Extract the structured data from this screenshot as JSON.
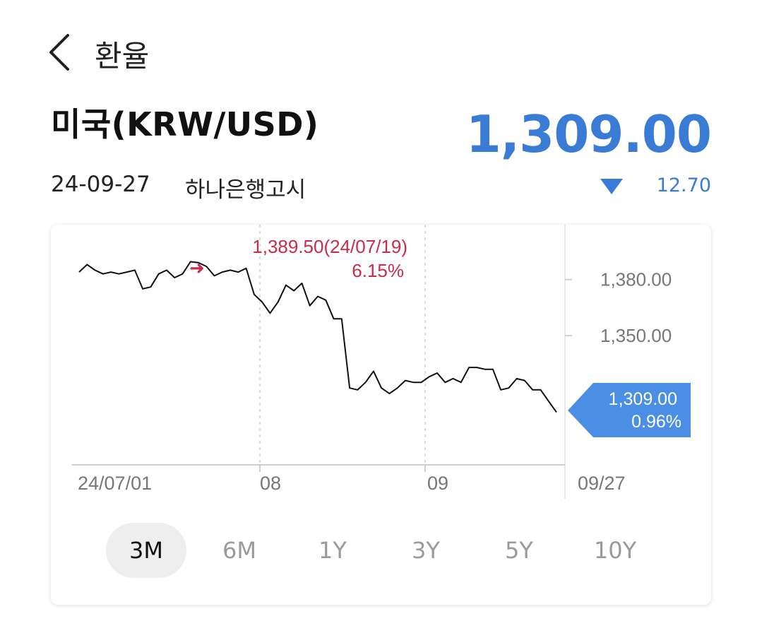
{
  "header": {
    "title": "환율"
  },
  "currency": {
    "name": "미국(KRW/USD)",
    "price": "1,309.00",
    "date": "24-09-27",
    "source": "하나은행고시",
    "change": "12.70",
    "change_direction": "down"
  },
  "colors": {
    "accent_blue": "#3a7bd5",
    "tag_blue": "#4a8ee6",
    "high_red": "#cc2a4a"
  },
  "chart_data": {
    "type": "line",
    "x_labels": [
      "24/07/01",
      "08",
      "09",
      "09/27"
    ],
    "y_ticks": [
      "1,380.00",
      "1,350.00"
    ],
    "y_tick_values": [
      1380,
      1350
    ],
    "ylim": [
      1296,
      1398
    ],
    "series": [
      {
        "values": [
          1384,
          1388,
          1385,
          1383,
          1384,
          1383,
          1384,
          1385,
          1375,
          1376,
          1383,
          1385,
          1381,
          1383,
          1389.5,
          1389,
          1387,
          1382,
          1384,
          1385,
          1384,
          1386,
          1372,
          1368,
          1362,
          1368,
          1377,
          1374,
          1378,
          1366,
          1371,
          1369,
          1359,
          1359,
          1322,
          1321,
          1325,
          1331,
          1322,
          1319,
          1322,
          1326,
          1325,
          1325,
          1328,
          1330,
          1325,
          1327,
          1325,
          1333,
          1333,
          1332,
          1332,
          1321,
          1322,
          1327,
          1326,
          1321,
          1321,
          1315,
          1309
        ]
      }
    ],
    "high_annotation": {
      "text": "1,389.50(24/07/19)",
      "pct": "6.15%",
      "arrow": "➜"
    },
    "current_tag": {
      "value": "1,309.00",
      "pct": "0.96%"
    }
  },
  "range_tabs": [
    {
      "label": "3M",
      "active": true
    },
    {
      "label": "6M",
      "active": false
    },
    {
      "label": "1Y",
      "active": false
    },
    {
      "label": "3Y",
      "active": false
    },
    {
      "label": "5Y",
      "active": false
    },
    {
      "label": "10Y",
      "active": false
    }
  ]
}
